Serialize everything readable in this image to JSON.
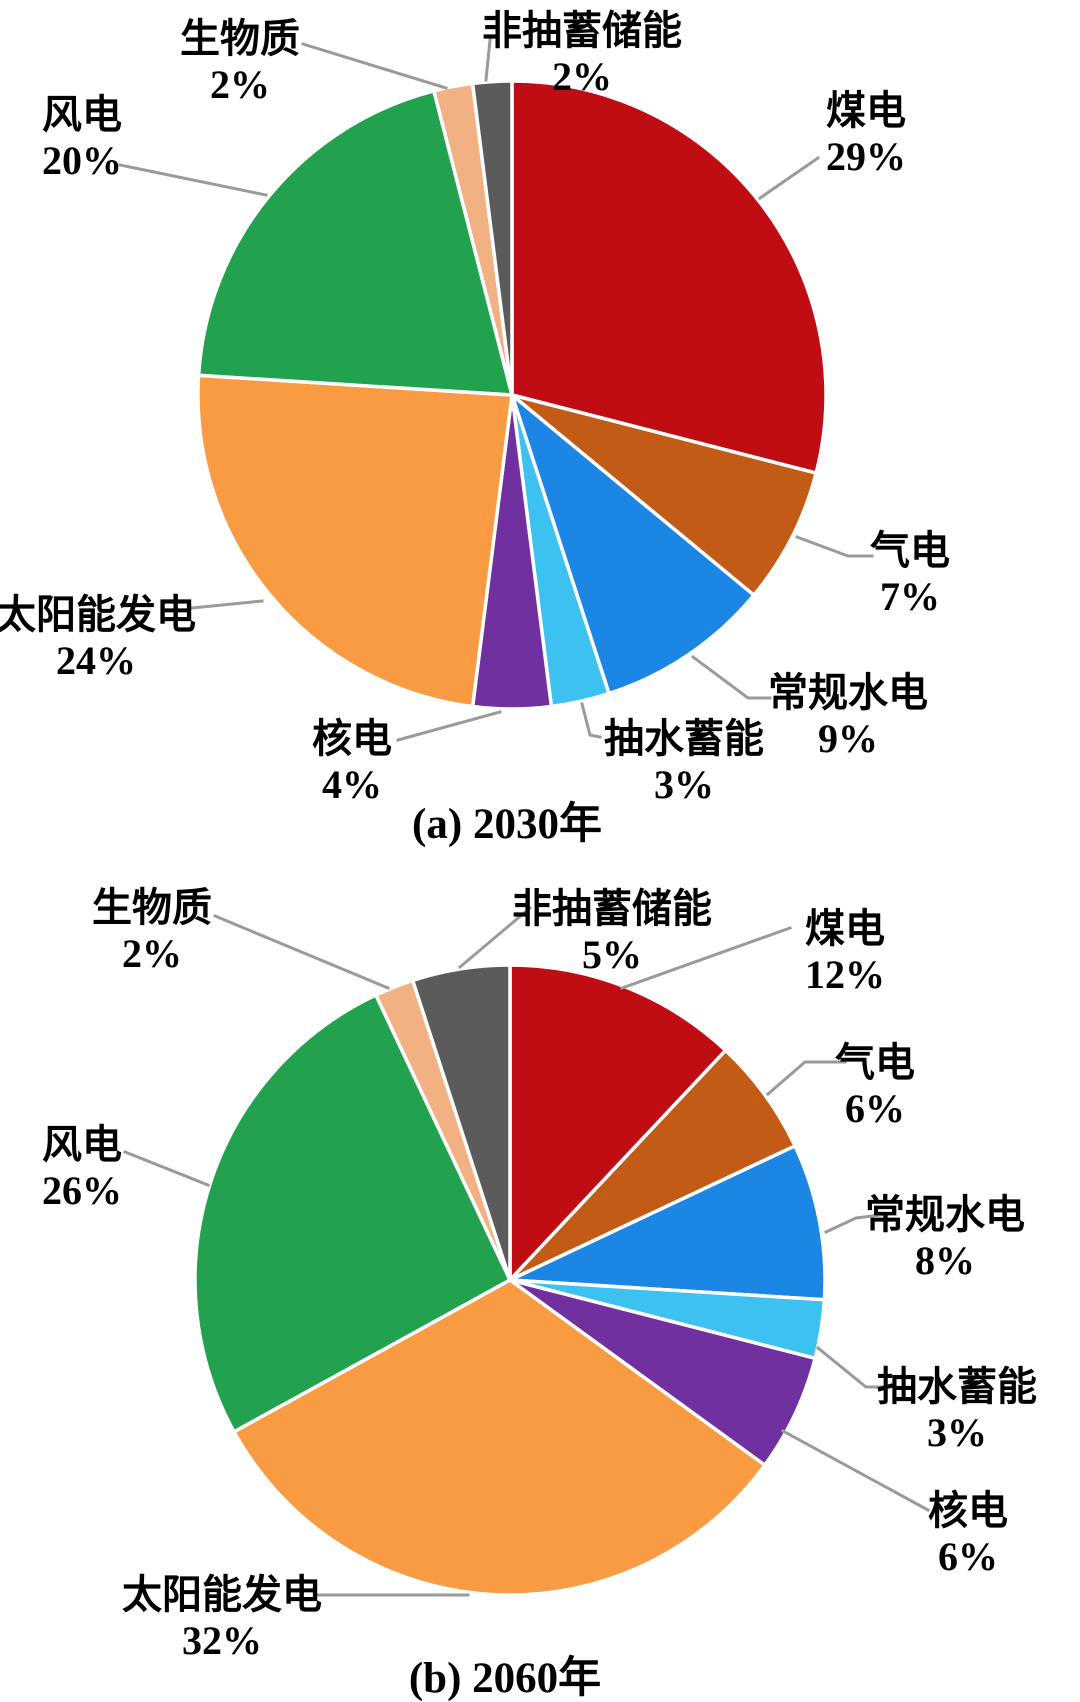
{
  "styles": {
    "background": "#ffffff",
    "text_color": "#000000",
    "leader_line_color": "#9a9a9a",
    "slice_border_color": "#ffffff"
  },
  "chart_data": [
    {
      "type": "pie",
      "id": "2030",
      "title": "(a) 2030年",
      "start_angle_deg": 0,
      "direction": "clockwise",
      "legend_position": "outside-labels",
      "labels": [
        "煤电",
        "气电",
        "常规水电",
        "抽水蓄能",
        "核电",
        "太阳能发电",
        "风电",
        "生物质",
        "非抽蓄储能"
      ],
      "values": [
        29,
        7,
        9,
        3,
        4,
        24,
        20,
        2,
        2
      ],
      "value_labels": [
        "29%",
        "7%",
        "9%",
        "3%",
        "4%",
        "24%",
        "20%",
        "2%",
        "2%"
      ],
      "colors": [
        "#c00d13",
        "#c25b15",
        "#1b86e4",
        "#3cc1f0",
        "#7030a0",
        "#f89b42",
        "#22a14e",
        "#f2b183",
        "#5b5b5b"
      ],
      "slice_keys": [
        "coal",
        "gas",
        "hydro",
        "pumped-storage",
        "nuclear",
        "solar",
        "wind",
        "biomass",
        "non-pumped-storage"
      ]
    },
    {
      "type": "pie",
      "id": "2060",
      "title": "(b) 2060年",
      "start_angle_deg": 0,
      "direction": "clockwise",
      "legend_position": "outside-labels",
      "labels": [
        "煤电",
        "气电",
        "常规水电",
        "抽水蓄能",
        "核电",
        "太阳能发电",
        "风电",
        "生物质",
        "非抽蓄储能"
      ],
      "values": [
        12,
        6,
        8,
        3,
        6,
        32,
        26,
        2,
        5
      ],
      "value_labels": [
        "12%",
        "6%",
        "8%",
        "3%",
        "6%",
        "32%",
        "26%",
        "2%",
        "5%"
      ],
      "colors": [
        "#c00d13",
        "#c25b15",
        "#1b86e4",
        "#3cc1f0",
        "#7030a0",
        "#f89b42",
        "#22a14e",
        "#f2b183",
        "#5b5b5b"
      ],
      "slice_keys": [
        "coal",
        "gas",
        "hydro",
        "pumped-storage",
        "nuclear",
        "solar",
        "wind",
        "biomass",
        "non-pumped-storage"
      ]
    }
  ]
}
